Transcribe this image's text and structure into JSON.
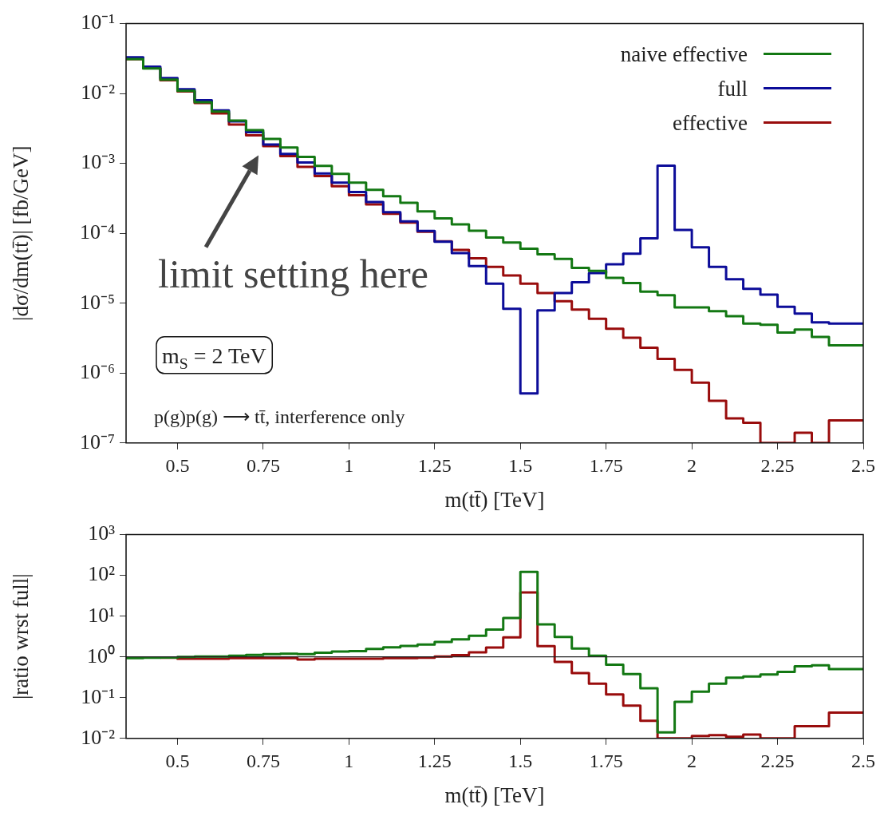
{
  "chart_data": [
    {
      "type": "step",
      "xlabel": "m(tt̄) [TeV]",
      "ylabel": "|dσ/dm(tt̄)| [fb/GeV]",
      "log": "y",
      "legend": "top right",
      "x": [
        0.35,
        0.4,
        0.45,
        0.5,
        0.55,
        0.6,
        0.65,
        0.7,
        0.75,
        0.8,
        0.85,
        0.9,
        0.95,
        1,
        1.05,
        1.1,
        1.15,
        1.2,
        1.25,
        1.3,
        1.35,
        1.4,
        1.45,
        1.5,
        1.55,
        1.6,
        1.65,
        1.7,
        1.75,
        1.8,
        1.85,
        1.9,
        1.95,
        2,
        2.05,
        2.1,
        2.15,
        2.2,
        2.25,
        2.3,
        2.35,
        2.4,
        2.45,
        2.5
      ],
      "series": [
        {
          "name": "naive effective",
          "color": "#137813",
          "values": [
            0.031,
            0.031,
            0.0228,
            0.0158,
            0.0109,
            0.0075,
            0.0055,
            0.0041,
            0.003,
            0.00224,
            0.00169,
            0.00124,
            0.00092,
            0.00071,
            0.00053,
            0.00042,
            0.00034,
            0.000273,
            0.000206,
            0.000164,
            0.000134,
            0.000109,
            8.7e-05,
            7.4e-05,
            6e-05,
            5e-05,
            4.3e-05,
            3.2e-05,
            2.9e-05,
            2.3e-05,
            1.94e-05,
            1.46e-05,
            1.3e-05,
            8.7e-06,
            8.7e-06,
            7.7e-06,
            6.5e-06,
            5.1e-06,
            4.9e-06,
            3.8e-06,
            4.2e-06,
            3.3e-06,
            2.5e-06,
            2.5e-06
          ]
        },
        {
          "name": "full",
          "color": "#0c0c99",
          "values": [
            0.033,
            0.033,
            0.0242,
            0.0166,
            0.0115,
            0.008,
            0.00575,
            0.004,
            0.0028,
            0.00186,
            0.00137,
            0.00103,
            0.00072,
            0.00053,
            0.00039,
            0.00028,
            0.0002,
            0.000148,
            0.000108,
            7.6e-05,
            5.2e-05,
            3.4e-05,
            1.9e-05,
            8.3e-06,
            5.1e-07,
            7.9e-06,
            1.4e-05,
            2e-05,
            2.7e-05,
            3.6e-05,
            5.1e-05,
            8.5e-05,
            0.00093,
            0.000112,
            6.3e-05,
            3.3e-05,
            2.2e-05,
            1.6e-05,
            1.33e-05,
            8.9e-06,
            7.1e-06,
            5.3e-06,
            5.1e-06,
            5.1e-06
          ]
        },
        {
          "name": "effective",
          "color": "#990c0c",
          "values": [
            0.032,
            0.031,
            0.023,
            0.0155,
            0.0107,
            0.0073,
            0.0052,
            0.0036,
            0.00253,
            0.00177,
            0.00127,
            0.00089,
            0.00066,
            0.00047,
            0.00035,
            0.00026,
            0.00019,
            0.000142,
            0.000105,
            7.7e-05,
            5.8e-05,
            4.4e-05,
            3.3e-05,
            2.5e-05,
            1.9e-05,
            1.4e-05,
            1.07e-05,
            8.1e-06,
            6e-06,
            4.3e-06,
            3.2e-06,
            2.3e-06,
            1.6e-06,
            1.11e-06,
            7.3e-07,
            4e-07,
            2.25e-07,
            1.95e-07,
            1e-07,
            1e-07,
            1.4e-07,
            1e-07,
            2.1e-07,
            2.1e-07
          ]
        }
      ],
      "xlim": [
        0.35,
        2.5
      ],
      "xticks": [
        0.5,
        0.75,
        1,
        1.25,
        1.5,
        1.75,
        2,
        2.25,
        2.5
      ],
      "ylim": [
        1e-07,
        0.1
      ],
      "yticks": [
        {
          "value": 1e-07,
          "label": "10⁻⁷"
        },
        {
          "value": 1e-06,
          "label": "10⁻⁶"
        },
        {
          "value": 1e-05,
          "label": "10⁻⁵"
        },
        {
          "value": 0.0001,
          "label": "10⁻⁴"
        },
        {
          "value": 0.001,
          "label": "10⁻³"
        },
        {
          "value": 0.01,
          "label": "10⁻²"
        },
        {
          "value": 0.1,
          "label": "10⁻¹"
        }
      ],
      "annotations": [
        "limit setting here",
        "m$_{S}$ = 2 TeV",
        "p(g)p(g) ⟶ tt̄, interference only"
      ]
    },
    {
      "type": "step",
      "xlabel": "m(tt̄) [TeV]",
      "ylabel": "|ratio wrst full|",
      "log": "y",
      "x": [
        0.35,
        0.4,
        0.45,
        0.5,
        0.55,
        0.6,
        0.65,
        0.7,
        0.75,
        0.8,
        0.85,
        0.9,
        0.95,
        1,
        1.05,
        1.1,
        1.15,
        1.2,
        1.25,
        1.3,
        1.35,
        1.4,
        1.45,
        1.5,
        1.55,
        1.6,
        1.65,
        1.7,
        1.75,
        1.8,
        1.85,
        1.9,
        1.95,
        2,
        2.05,
        2.1,
        2.15,
        2.2,
        2.25,
        2.3,
        2.35,
        2.4,
        2.45,
        2.5
      ],
      "series": [
        {
          "color": "#137813",
          "values": [
            0.93,
            0.93,
            0.95,
            0.97,
            1,
            1.02,
            1.02,
            1.07,
            1.12,
            1.17,
            1.2,
            1.17,
            1.27,
            1.36,
            1.38,
            1.56,
            1.72,
            1.85,
            2,
            2.33,
            2.7,
            3.3,
            4.7,
            9,
            122,
            6.3,
            3.1,
            1.6,
            1.07,
            0.64,
            0.38,
            0.17,
            0.014,
            0.079,
            0.14,
            0.22,
            0.31,
            0.33,
            0.37,
            0.43,
            0.59,
            0.62,
            0.5,
            0.5
          ]
        },
        {
          "color": "#990c0c",
          "values": [
            null,
            null,
            0.95,
            0.95,
            0.9,
            0.9,
            0.9,
            0.93,
            0.93,
            0.93,
            0.93,
            0.86,
            0.9,
            0.9,
            0.9,
            0.9,
            0.93,
            0.93,
            0.95,
            1.02,
            1.11,
            1.29,
            1.7,
            3,
            38,
            1.84,
            0.75,
            0.4,
            0.22,
            0.12,
            0.064,
            0.027,
            0.01,
            0.01,
            0.0115,
            0.012,
            0.011,
            0.0124,
            0.01,
            0.01,
            0.02,
            0.02,
            0.043,
            0.043
          ]
        }
      ],
      "xlim": [
        0.35,
        2.5
      ],
      "xticks": [
        0.5,
        0.75,
        1,
        1.25,
        1.5,
        1.75,
        2,
        2.25,
        2.5
      ],
      "ylim": [
        0.01,
        1000
      ],
      "yticks": [
        {
          "value": 0.01,
          "label": "10⁻²"
        },
        {
          "value": 0.1,
          "label": "10⁻¹"
        },
        {
          "value": 1,
          "label": "10⁰"
        },
        {
          "value": 10,
          "label": "10¹"
        },
        {
          "value": 100,
          "label": "10²"
        },
        {
          "value": 1000,
          "label": "10³"
        }
      ],
      "ref_lines": [
        {
          "axis": "y",
          "value": 1,
          "color": "#222222"
        }
      ]
    }
  ]
}
